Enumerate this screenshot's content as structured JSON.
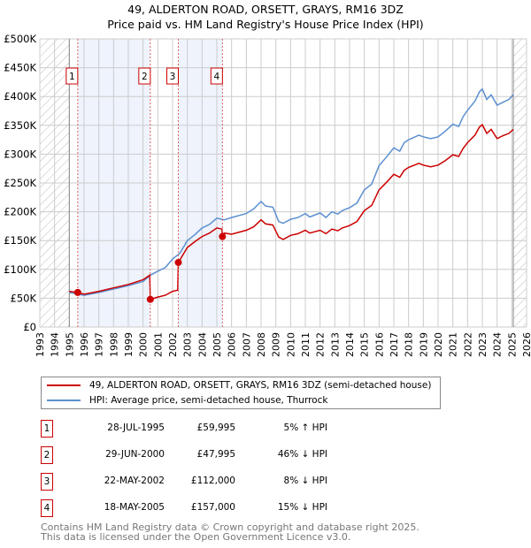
{
  "chart_data": {
    "type": "line",
    "title": "49, ALDERTON ROAD, ORSETT, GRAYS, RM16 3DZ",
    "subtitle": "Price paid vs. HM Land Registry's House Price Index (HPI)",
    "xlim": [
      1993,
      2026
    ],
    "ylim": [
      0,
      500000
    ],
    "x_ticks": [
      "1993",
      "1994",
      "1995",
      "1996",
      "1997",
      "1998",
      "1999",
      "2000",
      "2001",
      "2002",
      "2003",
      "2004",
      "2005",
      "2006",
      "2007",
      "2008",
      "2009",
      "2010",
      "2011",
      "2012",
      "2013",
      "2014",
      "2015",
      "2016",
      "2017",
      "2018",
      "2019",
      "2020",
      "2021",
      "2022",
      "2023",
      "2024",
      "2025",
      "2026"
    ],
    "y_ticks": [
      {
        "v": 0,
        "label": "£0"
      },
      {
        "v": 50000,
        "label": "£50K"
      },
      {
        "v": 100000,
        "label": "£100K"
      },
      {
        "v": 150000,
        "label": "£150K"
      },
      {
        "v": 200000,
        "label": "£200K"
      },
      {
        "v": 250000,
        "label": "£250K"
      },
      {
        "v": 300000,
        "label": "£300K"
      },
      {
        "v": 350000,
        "label": "£350K"
      },
      {
        "v": 400000,
        "label": "£400K"
      },
      {
        "v": 450000,
        "label": "£450K"
      },
      {
        "v": 500000,
        "label": "£500K"
      }
    ],
    "grid": true,
    "hatched_ranges": [
      [
        1993,
        1995
      ],
      [
        2025.1,
        2026
      ]
    ],
    "shaded_ranges": [
      [
        1995.57,
        2000.49
      ],
      [
        2002.39,
        2005.38
      ]
    ],
    "series": [
      {
        "name": "49, ALDERTON ROAD, ORSETT, GRAYS, RM16 3DZ (semi-detached house)",
        "color": "#cc0000",
        "x": [
          1995,
          1995.57,
          1996,
          1997,
          1998,
          1999,
          2000,
          2000.45,
          2000.49,
          2001,
          2001.5,
          2002,
          2002.35,
          2002.39,
          2003,
          2003.5,
          2004,
          2004.5,
          2005,
          2005.35,
          2005.38,
          2005.5,
          2006,
          2007,
          2007.5,
          2008,
          2008.3,
          2008.8,
          2009.2,
          2009.5,
          2010,
          2010.5,
          2011,
          2011.3,
          2012,
          2012.4,
          2012.8,
          2013.2,
          2013.5,
          2014,
          2014.5,
          2015,
          2015.5,
          2016,
          2016.5,
          2017,
          2017.4,
          2017.7,
          2018,
          2018.7,
          2019,
          2019.5,
          2020,
          2020.5,
          2021,
          2021.4,
          2021.7,
          2022,
          2022.5,
          2022.8,
          2023,
          2023.3,
          2023.6,
          2024,
          2024.4,
          2024.8,
          2025.1
        ],
        "y": [
          62000,
          60000,
          57000,
          62000,
          68000,
          74000,
          82000,
          90000,
          48000,
          52000,
          55000,
          62000,
          64000,
          112000,
          138000,
          148000,
          157000,
          163000,
          172000,
          170000,
          157000,
          163000,
          161000,
          168000,
          174000,
          186000,
          179000,
          177000,
          156000,
          152000,
          159000,
          162000,
          168000,
          163000,
          168000,
          162000,
          170000,
          167000,
          172000,
          176000,
          183000,
          202000,
          211000,
          238000,
          251000,
          265000,
          260000,
          272000,
          277000,
          284000,
          281000,
          278000,
          281000,
          289000,
          299000,
          296000,
          310000,
          320000,
          333000,
          347000,
          351000,
          336000,
          343000,
          327000,
          332000,
          336000,
          343000
        ]
      },
      {
        "name": "HPI: Average price, semi-detached house, Thurrock",
        "color": "#5b8fd0",
        "x": [
          1995,
          1996,
          1997,
          1998,
          1999,
          2000,
          2000.5,
          2001,
          2001.5,
          2002,
          2002.5,
          2003,
          2003.5,
          2004,
          2004.5,
          2005,
          2005.5,
          2006,
          2007,
          2007.5,
          2008,
          2008.3,
          2008.8,
          2009.2,
          2009.5,
          2010,
          2010.5,
          2011,
          2011.3,
          2012,
          2012.4,
          2012.8,
          2013.2,
          2013.5,
          2014,
          2014.5,
          2015,
          2015.5,
          2016,
          2016.5,
          2017,
          2017.4,
          2017.7,
          2018,
          2018.7,
          2019,
          2019.5,
          2020,
          2020.5,
          2021,
          2021.4,
          2021.7,
          2022,
          2022.5,
          2022.8,
          2023,
          2023.3,
          2023.6,
          2024,
          2024.4,
          2024.8,
          2025.1
        ],
        "y": [
          60000,
          55000,
          60000,
          66000,
          72000,
          79000,
          90000,
          97000,
          103000,
          118000,
          128000,
          150000,
          160000,
          172000,
          178000,
          189000,
          186000,
          190000,
          197000,
          205000,
          218000,
          210000,
          208000,
          183000,
          180000,
          187000,
          190000,
          197000,
          191000,
          198000,
          190000,
          200000,
          196000,
          202000,
          207000,
          215000,
          238000,
          248000,
          280000,
          295000,
          311000,
          305000,
          320000,
          325000,
          333000,
          330000,
          327000,
          330000,
          340000,
          352000,
          348000,
          365000,
          376000,
          392000,
          408000,
          413000,
          395000,
          403000,
          385000,
          390000,
          395000,
          403000
        ]
      }
    ],
    "sales": [
      {
        "n": "1",
        "x": 1995.57,
        "date": "28-JUL-1995",
        "price": 59995,
        "price_label": "£59,995",
        "hpi": "5% ↑ HPI"
      },
      {
        "n": "2",
        "x": 2000.49,
        "date": "29-JUN-2000",
        "price": 47995,
        "price_label": "£47,995",
        "hpi": "46% ↓ HPI"
      },
      {
        "n": "3",
        "x": 2002.39,
        "date": "22-MAY-2002",
        "price": 112000,
        "price_label": "£112,000",
        "hpi": "8% ↓ HPI"
      },
      {
        "n": "4",
        "x": 2005.38,
        "date": "18-MAY-2005",
        "price": 157000,
        "price_label": "£157,000",
        "hpi": "15% ↓ HPI"
      }
    ],
    "legend_position": "below"
  },
  "footer": {
    "line1": "Contains HM Land Registry data © Crown copyright and database right 2025.",
    "line2": "This data is licensed under the Open Government Licence v3.0."
  }
}
